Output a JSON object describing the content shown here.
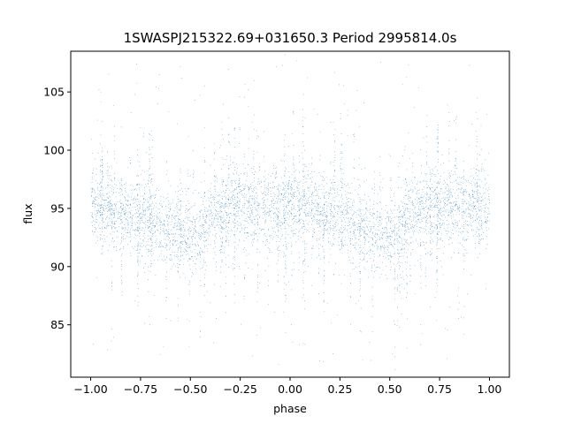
{
  "chart_data": {
    "type": "scatter",
    "title": "1SWASPJ215322.69+031650.3 Period 2995814.0s",
    "xlabel": "phase",
    "ylabel": "flux",
    "xlim": [
      -1.1,
      1.1
    ],
    "ylim": [
      80.5,
      108.5
    ],
    "x_ticks": [
      -1.0,
      -0.75,
      -0.5,
      -0.25,
      0.0,
      0.25,
      0.5,
      0.75,
      1.0
    ],
    "x_tick_labels": [
      "−1.00",
      "−0.75",
      "−0.50",
      "−0.25",
      "0.00",
      "0.25",
      "0.50",
      "0.75",
      "1.00"
    ],
    "y_ticks": [
      85,
      90,
      95,
      100,
      105
    ],
    "y_tick_labels": [
      "85",
      "90",
      "95",
      "100",
      "105"
    ],
    "grid": false,
    "legend": "none",
    "color": "#1f77b4",
    "series": [
      {
        "phase_range": [
          -1.0,
          1.0
        ],
        "profile": [
          {
            "phase": -1.0,
            "flux": 95.3
          },
          {
            "phase": -0.9,
            "flux": 95.0
          },
          {
            "phase": -0.8,
            "flux": 94.6
          },
          {
            "phase": -0.7,
            "flux": 94.0
          },
          {
            "phase": -0.6,
            "flux": 93.2
          },
          {
            "phase": -0.5,
            "flux": 92.4
          },
          {
            "phase": -0.45,
            "flux": 92.8
          },
          {
            "phase": -0.4,
            "flux": 94.4
          },
          {
            "phase": -0.3,
            "flux": 95.2
          },
          {
            "phase": -0.2,
            "flux": 95.0
          },
          {
            "phase": -0.1,
            "flux": 95.1
          },
          {
            "phase": 0.0,
            "flux": 95.3
          },
          {
            "phase": 0.1,
            "flux": 95.0
          },
          {
            "phase": 0.2,
            "flux": 94.6
          },
          {
            "phase": 0.3,
            "flux": 94.0
          },
          {
            "phase": 0.4,
            "flux": 93.2
          },
          {
            "phase": 0.5,
            "flux": 92.4
          },
          {
            "phase": 0.55,
            "flux": 92.8
          },
          {
            "phase": 0.6,
            "flux": 94.4
          },
          {
            "phase": 0.7,
            "flux": 95.2
          },
          {
            "phase": 0.8,
            "flux": 95.0
          },
          {
            "phase": 0.9,
            "flux": 95.1
          },
          {
            "phase": 1.0,
            "flux": 95.3
          }
        ],
        "scatter_sigma": 1.6,
        "outlier_flux_range": [
          81.5,
          108.0
        ]
      }
    ]
  }
}
